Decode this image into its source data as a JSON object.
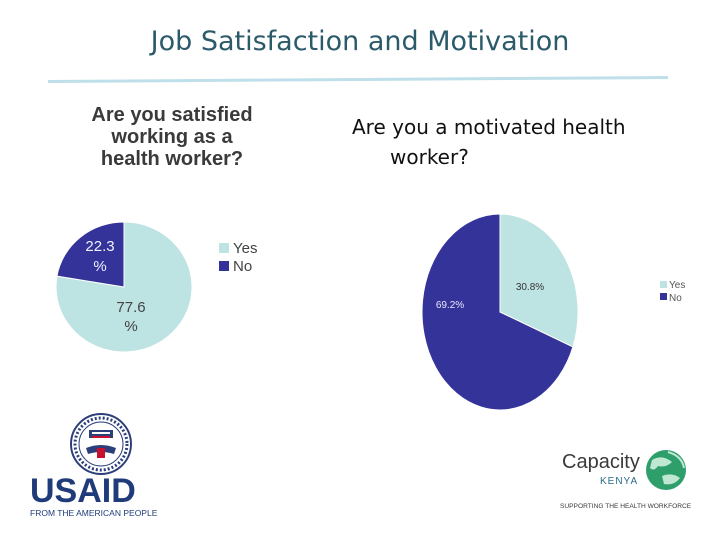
{
  "slide": {
    "title": "Job Satisfaction and Motivation"
  },
  "colors": {
    "yes": "#bde3e2",
    "no": "#343399",
    "title": "#2b5a6b",
    "rule": "#bfe0ea"
  },
  "chart_data": [
    {
      "type": "pie",
      "title_lines": [
        "Are you satisfied",
        "working as a",
        "health worker?"
      ],
      "categories": [
        "Yes",
        "No"
      ],
      "values": [
        77.6,
        22.3
      ],
      "data_labels": [
        [
          "77.6",
          "%"
        ],
        [
          "22.3",
          "%"
        ]
      ],
      "legend": {
        "placement": "right",
        "entries": [
          "Yes",
          "No"
        ]
      }
    },
    {
      "type": "pie",
      "title_lines": [
        "Are you a motivated health",
        "worker?"
      ],
      "categories": [
        "Yes",
        "No"
      ],
      "values": [
        30.8,
        69.2
      ],
      "data_labels": [
        "30.8%",
        "69.2%"
      ],
      "legend": {
        "placement": "right",
        "entries": [
          "Yes",
          "No"
        ]
      }
    }
  ],
  "logos": {
    "usaid": {
      "wordmark": "USAID",
      "tagline": "FROM THE AMERICAN PEOPLE"
    },
    "capacity": {
      "wordmark": "Capacity",
      "sub": "KENYA",
      "tagline": "SUPPORTING THE HEALTH WORKFORCE"
    }
  }
}
